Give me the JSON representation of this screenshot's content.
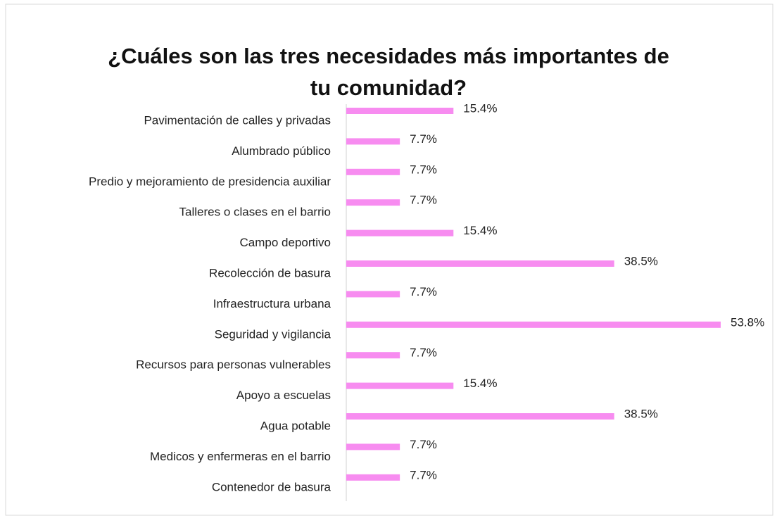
{
  "chart_data": {
    "type": "bar",
    "orientation": "horizontal",
    "title": "¿Cuáles son las tres necesidades más importantes de tu comunidad?",
    "categories": [
      "Pavimentación de calles y privadas",
      "Alumbrado público",
      "Predio y mejoramiento de presidencia auxiliar",
      "Talleres o clases en el barrio",
      "Campo deportivo",
      "Recolección de basura",
      "Infraestructura urbana",
      "Seguridad y vigilancia",
      "Recursos para personas vulnerables",
      "Apoyo a escuelas",
      "Agua potable",
      "Medicos y enfermeras en el barrio",
      "Contenedor de basura"
    ],
    "values": [
      15.4,
      7.7,
      7.7,
      7.7,
      15.4,
      38.5,
      7.7,
      53.8,
      7.7,
      15.4,
      38.5,
      7.7,
      7.7
    ],
    "value_labels": [
      "15.4%",
      "7.7%",
      "7.7%",
      "7.7%",
      "15.4%",
      "38.5%",
      "7.7%",
      "53.8%",
      "7.7%",
      "15.4%",
      "38.5%",
      "7.7%",
      "7.7%"
    ],
    "color": "#f78cf0"
  }
}
